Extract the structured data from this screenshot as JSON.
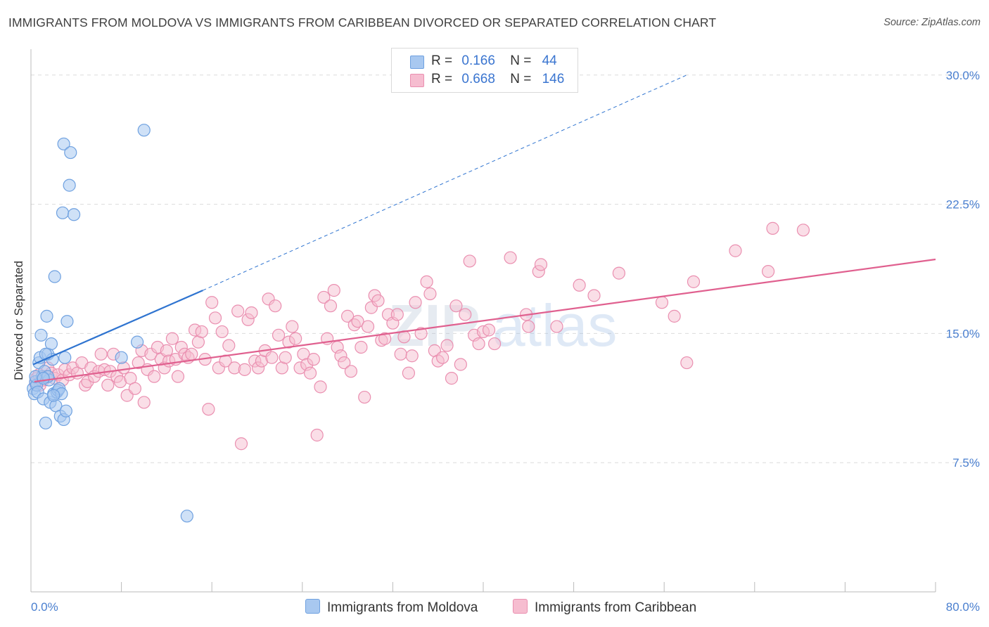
{
  "header": {
    "title": "IMMIGRANTS FROM MOLDOVA VS IMMIGRANTS FROM CARIBBEAN DIVORCED OR SEPARATED CORRELATION CHART",
    "source": "Source: ZipAtlas.com"
  },
  "legend": {
    "r_label": "R =",
    "n_label": "N =",
    "series": [
      {
        "name": "Immigrants from Moldova",
        "r": "0.166",
        "n": "44",
        "color": "#a8c8f0",
        "stroke": "#6fa1e0"
      },
      {
        "name": "Immigrants from Caribbean",
        "r": "0.668",
        "n": "146",
        "color": "#f6bdd0",
        "stroke": "#ea8fb0"
      }
    ]
  },
  "watermark": {
    "part1": "ZIP",
    "part2": "atlas"
  },
  "chart_data": {
    "type": "scatter",
    "title": "IMMIGRANTS FROM MOLDOVA VS IMMIGRANTS FROM CARIBBEAN DIVORCED OR SEPARATED CORRELATION CHART",
    "xlabel": "",
    "ylabel": "Divorced or Separated",
    "xlim": [
      0,
      80
    ],
    "ylim": [
      0,
      31.5
    ],
    "x_tick_labels": {
      "left": "0.0%",
      "right": "80.0%"
    },
    "y_ticks": [
      7.5,
      15.0,
      22.5,
      30.0
    ],
    "y_tick_labels": [
      "7.5%",
      "15.0%",
      "22.5%",
      "30.0%"
    ],
    "grid": true,
    "legend_position": "top-center",
    "series": [
      {
        "name": "Immigrants from Moldova",
        "color": "#6fa1e0",
        "trend": {
          "x0": 0.2,
          "y0": 13.2,
          "x1": 15.2,
          "y1": 17.5,
          "dashed_to_x": 58,
          "dashed_to_y": 30.0,
          "color": "#2f74d0"
        },
        "points": [
          [
            0.2,
            11.8
          ],
          [
            0.3,
            11.5
          ],
          [
            0.4,
            12.2
          ],
          [
            0.5,
            12.0
          ],
          [
            0.6,
            11.6
          ],
          [
            0.7,
            13.3
          ],
          [
            0.8,
            13.6
          ],
          [
            0.9,
            14.9
          ],
          [
            1.0,
            12.5
          ],
          [
            1.1,
            11.2
          ],
          [
            1.2,
            12.8
          ],
          [
            1.3,
            9.8
          ],
          [
            1.4,
            16.0
          ],
          [
            1.5,
            13.8
          ],
          [
            1.6,
            12.3
          ],
          [
            1.7,
            11.0
          ],
          [
            1.8,
            14.4
          ],
          [
            1.9,
            13.5
          ],
          [
            2.0,
            11.5
          ],
          [
            2.1,
            18.3
          ],
          [
            2.2,
            10.8
          ],
          [
            2.3,
            11.6
          ],
          [
            2.4,
            11.7
          ],
          [
            2.5,
            11.8
          ],
          [
            2.6,
            10.2
          ],
          [
            2.7,
            11.5
          ],
          [
            2.8,
            22.0
          ],
          [
            2.9,
            10.0
          ],
          [
            3.0,
            13.6
          ],
          [
            3.1,
            10.5
          ],
          [
            3.2,
            15.7
          ],
          [
            2.9,
            26.0
          ],
          [
            3.4,
            23.6
          ],
          [
            3.5,
            25.5
          ],
          [
            3.8,
            21.9
          ],
          [
            8.0,
            13.6
          ],
          [
            9.4,
            14.5
          ],
          [
            10.0,
            26.8
          ],
          [
            13.8,
            4.4
          ],
          [
            1.3,
            13.8
          ],
          [
            0.4,
            12.5
          ],
          [
            1.5,
            12.5
          ],
          [
            2.0,
            11.4
          ],
          [
            1.1,
            12.4
          ]
        ]
      },
      {
        "name": "Immigrants from Caribbean",
        "color": "#ea8fb0",
        "trend": {
          "x0": 0.3,
          "y0": 12.2,
          "x1": 80.0,
          "y1": 19.3,
          "color": "#e0608f"
        },
        "points": [
          [
            0.4,
            12.1
          ],
          [
            0.5,
            12.4
          ],
          [
            0.7,
            12.6
          ],
          [
            0.8,
            12.0
          ],
          [
            1.1,
            12.3
          ],
          [
            1.3,
            12.5
          ],
          [
            1.5,
            13.0
          ],
          [
            1.8,
            12.7
          ],
          [
            2.1,
            12.4
          ],
          [
            2.4,
            12.6
          ],
          [
            2.8,
            12.3
          ],
          [
            3.0,
            12.9
          ],
          [
            3.4,
            12.6
          ],
          [
            3.7,
            13.0
          ],
          [
            4.1,
            12.7
          ],
          [
            4.5,
            13.3
          ],
          [
            4.8,
            12.0
          ],
          [
            5.0,
            12.2
          ],
          [
            5.3,
            13.0
          ],
          [
            5.6,
            12.5
          ],
          [
            6.0,
            12.8
          ],
          [
            6.2,
            13.8
          ],
          [
            6.5,
            12.9
          ],
          [
            6.8,
            12.0
          ],
          [
            7.0,
            12.8
          ],
          [
            7.3,
            13.8
          ],
          [
            7.6,
            12.5
          ],
          [
            7.9,
            12.2
          ],
          [
            8.2,
            13.0
          ],
          [
            8.5,
            11.4
          ],
          [
            8.8,
            12.4
          ],
          [
            9.2,
            11.8
          ],
          [
            9.5,
            13.3
          ],
          [
            9.8,
            14.0
          ],
          [
            10.0,
            11.0
          ],
          [
            10.3,
            12.9
          ],
          [
            10.6,
            13.8
          ],
          [
            10.9,
            12.5
          ],
          [
            11.2,
            14.2
          ],
          [
            11.5,
            13.5
          ],
          [
            11.8,
            13.0
          ],
          [
            12.0,
            14.0
          ],
          [
            12.2,
            13.4
          ],
          [
            12.5,
            14.7
          ],
          [
            12.8,
            13.5
          ],
          [
            13.0,
            12.5
          ],
          [
            13.3,
            14.2
          ],
          [
            13.6,
            13.8
          ],
          [
            13.9,
            13.6
          ],
          [
            14.2,
            13.8
          ],
          [
            14.5,
            15.2
          ],
          [
            14.8,
            14.5
          ],
          [
            15.1,
            15.1
          ],
          [
            15.4,
            13.5
          ],
          [
            15.7,
            10.6
          ],
          [
            16.0,
            16.8
          ],
          [
            16.3,
            15.9
          ],
          [
            16.6,
            13.0
          ],
          [
            16.9,
            15.1
          ],
          [
            17.2,
            13.4
          ],
          [
            17.5,
            14.3
          ],
          [
            18.0,
            13.0
          ],
          [
            18.3,
            16.3
          ],
          [
            18.6,
            8.6
          ],
          [
            18.9,
            12.9
          ],
          [
            19.2,
            15.8
          ],
          [
            19.5,
            16.2
          ],
          [
            19.8,
            13.4
          ],
          [
            20.1,
            13.0
          ],
          [
            20.4,
            13.4
          ],
          [
            20.7,
            14.0
          ],
          [
            21.0,
            17.0
          ],
          [
            21.3,
            13.6
          ],
          [
            21.6,
            16.6
          ],
          [
            21.9,
            14.9
          ],
          [
            22.2,
            13.0
          ],
          [
            22.5,
            13.6
          ],
          [
            22.8,
            14.5
          ],
          [
            23.1,
            15.4
          ],
          [
            23.4,
            14.7
          ],
          [
            23.8,
            13.0
          ],
          [
            24.1,
            13.8
          ],
          [
            24.4,
            13.2
          ],
          [
            24.7,
            12.7
          ],
          [
            25.0,
            13.5
          ],
          [
            25.3,
            9.1
          ],
          [
            25.6,
            11.9
          ],
          [
            25.9,
            17.1
          ],
          [
            26.2,
            14.7
          ],
          [
            26.5,
            16.6
          ],
          [
            26.8,
            17.5
          ],
          [
            27.1,
            14.2
          ],
          [
            27.4,
            13.7
          ],
          [
            27.7,
            13.3
          ],
          [
            28.0,
            16.0
          ],
          [
            28.3,
            12.8
          ],
          [
            28.6,
            15.5
          ],
          [
            28.9,
            15.7
          ],
          [
            29.2,
            14.2
          ],
          [
            29.5,
            11.3
          ],
          [
            29.8,
            15.4
          ],
          [
            30.1,
            16.5
          ],
          [
            30.4,
            17.2
          ],
          [
            30.7,
            16.9
          ],
          [
            31.0,
            14.6
          ],
          [
            31.3,
            14.7
          ],
          [
            31.6,
            16.1
          ],
          [
            32.0,
            15.6
          ],
          [
            32.4,
            16.1
          ],
          [
            32.7,
            13.8
          ],
          [
            33.0,
            14.8
          ],
          [
            33.4,
            12.7
          ],
          [
            33.7,
            13.7
          ],
          [
            34.0,
            16.8
          ],
          [
            34.5,
            15.0
          ],
          [
            35.0,
            18.0
          ],
          [
            35.3,
            17.3
          ],
          [
            35.7,
            14.0
          ],
          [
            36.0,
            13.4
          ],
          [
            36.4,
            13.6
          ],
          [
            36.8,
            14.3
          ],
          [
            37.2,
            12.4
          ],
          [
            37.6,
            16.6
          ],
          [
            38.0,
            13.2
          ],
          [
            38.4,
            16.1
          ],
          [
            38.8,
            19.2
          ],
          [
            39.2,
            14.9
          ],
          [
            39.6,
            14.4
          ],
          [
            40.0,
            15.1
          ],
          [
            40.5,
            15.2
          ],
          [
            41.0,
            14.4
          ],
          [
            42.4,
            19.4
          ],
          [
            43.8,
            16.1
          ],
          [
            44.0,
            15.4
          ],
          [
            44.9,
            18.6
          ],
          [
            45.1,
            19.0
          ],
          [
            46.5,
            15.4
          ],
          [
            48.5,
            17.8
          ],
          [
            49.8,
            17.2
          ],
          [
            52.0,
            18.5
          ],
          [
            55.8,
            16.8
          ],
          [
            56.9,
            16.0
          ],
          [
            58.0,
            13.3
          ],
          [
            58.6,
            18.0
          ],
          [
            62.3,
            19.8
          ],
          [
            65.2,
            18.6
          ],
          [
            65.6,
            21.1
          ],
          [
            68.3,
            21.0
          ]
        ]
      }
    ]
  }
}
